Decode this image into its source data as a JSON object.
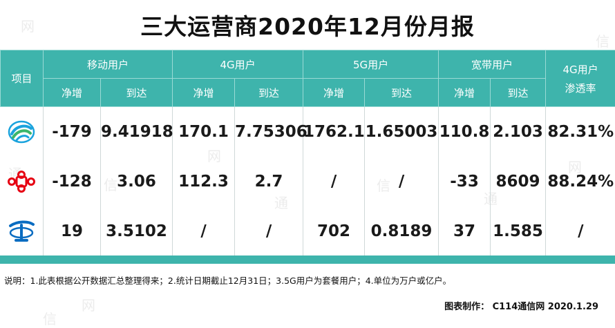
{
  "title": "三大运营商2020年12月份月报",
  "header": {
    "item": "项目",
    "groups": [
      "移动用户",
      "4G用户",
      "5G用户",
      "宽带用户"
    ],
    "penetration_line1": "4G用户",
    "penetration_line2": "渗透率",
    "sub": [
      "净增",
      "到达",
      "净增",
      "到达",
      "净增",
      "到达",
      "净增",
      "到达"
    ]
  },
  "rows": [
    {
      "logo": "china-mobile-logo",
      "cells": [
        "-179",
        "9.41918",
        "170.1",
        "7.75306",
        "1762.1",
        "1.65003",
        "110.8",
        "2.103",
        "82.31%"
      ]
    },
    {
      "logo": "china-unicom-logo",
      "cells": [
        "-128",
        "3.06",
        "112.3",
        "2.7",
        "/",
        "/",
        "-33",
        "8609",
        "88.24%"
      ]
    },
    {
      "logo": "china-telecom-logo",
      "cells": [
        "19",
        "3.5102",
        "/",
        "/",
        "702",
        "0.8189",
        "37",
        "1.585",
        "/"
      ]
    }
  ],
  "note": "说明：1.此表根据公开数据汇总整理得来；2.统计日期截止12月31日；3.5G用户为套餐用户；4.单位为万户或亿户。",
  "credit": "图表制作： C114通信网  2020.1.29",
  "watermarks": [
    "网",
    "通",
    "信",
    "网",
    "通",
    "信",
    "网",
    "信",
    "网",
    "通",
    "信",
    "网"
  ],
  "colors": {
    "header_bg": "#3eb4ac",
    "mobile": "#1aa3dd",
    "unicom": "#e60012",
    "telecom": "#0a6cc1"
  }
}
